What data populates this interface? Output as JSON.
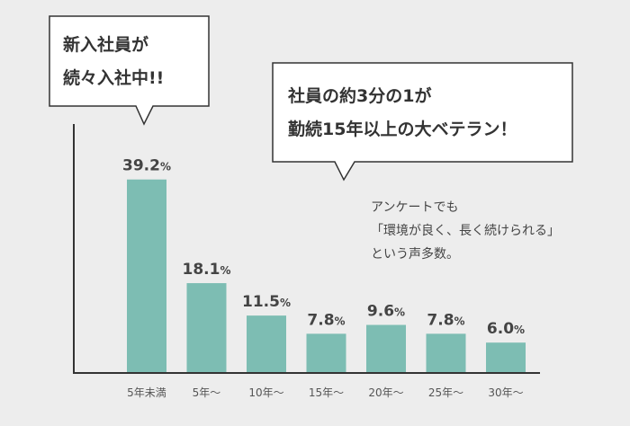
{
  "callout_left": {
    "lines": [
      "新入社員が",
      "続々入社中!!"
    ]
  },
  "callout_right": {
    "lines": [
      "社員の約3分の1が",
      "勤続15年以上の大ベテラン！"
    ]
  },
  "note": {
    "lines": [
      "アンケートでも",
      "「環境が良く、長く続けられる」",
      "という声多数。"
    ]
  },
  "colors": {
    "bar": "#7dbdb3",
    "axis": "#333333",
    "label": "#555555",
    "background": "#ededed"
  },
  "chart_data": {
    "type": "bar",
    "categories": [
      "5年未満",
      "5年〜",
      "10年〜",
      "15年〜",
      "20年〜",
      "25年〜",
      "30年〜"
    ],
    "values": [
      39.2,
      18.1,
      11.5,
      7.8,
      9.6,
      7.8,
      6.0
    ],
    "value_labels": [
      "39.2%",
      "18.1%",
      "11.5%",
      "7.8%",
      "9.6%",
      "7.8%",
      "6.0%"
    ],
    "unit": "%",
    "ylim": [
      0,
      45
    ],
    "grid": false,
    "title": "",
    "xlabel": "",
    "ylabel": ""
  }
}
